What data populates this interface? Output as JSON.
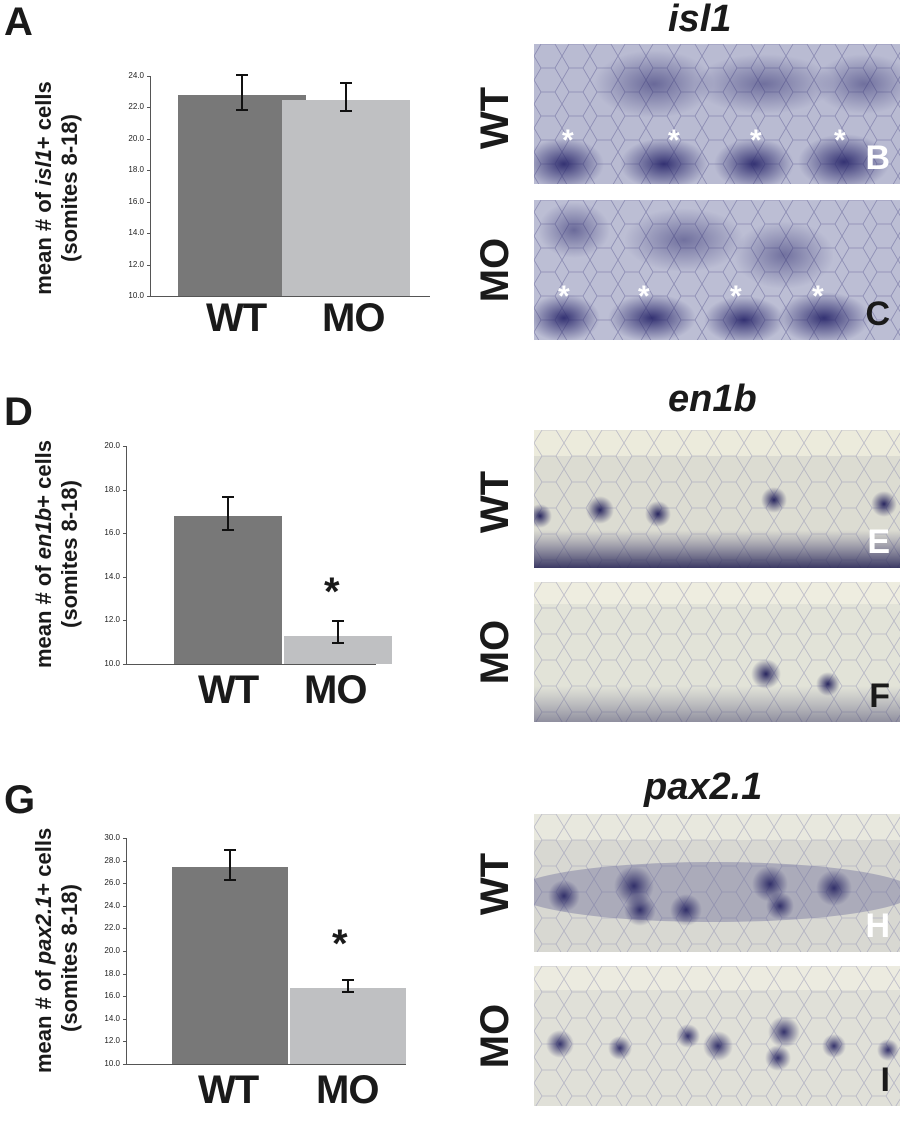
{
  "panels": {
    "A": "A",
    "B": "B",
    "C": "C",
    "D": "D",
    "E": "E",
    "F": "F",
    "G": "G",
    "H": "H",
    "I": "I"
  },
  "genes": {
    "isl1": "isl1",
    "en1b": "en1b",
    "pax2": "pax2.1"
  },
  "row_labels": {
    "wt": "WT",
    "mo": "MO"
  },
  "significance_marker": "*",
  "colors": {
    "wt_bar": "#787878",
    "mo_bar": "#bfc0c2",
    "stain": "#3b3a78"
  },
  "ylabels": {
    "isl1": {
      "pre": "mean # of ",
      "gene": "isl1",
      "post": "+ cells",
      "line2": "(somites 8-18)"
    },
    "en1b": {
      "pre": "mean # of ",
      "gene": "en1b",
      "post": "+ cells",
      "line2": "(somites 8-18)"
    },
    "pax2": {
      "pre": "mean # of ",
      "gene": "pax2.1",
      "post": "+ cells",
      "line2": "(somites 8-18)"
    }
  },
  "chart_data": [
    {
      "type": "bar",
      "categories": [
        "WT",
        "MO"
      ],
      "values": [
        22.8,
        22.5
      ],
      "error": [
        [
          21.8,
          24.1
        ],
        [
          21.7,
          23.6
        ]
      ],
      "ylim": [
        10.0,
        24.0
      ],
      "ticks": [
        "10.0",
        "12.0",
        "14.0",
        "16.0",
        "18.0",
        "20.0",
        "22.0",
        "24.0"
      ],
      "significant": [
        false,
        false
      ]
    },
    {
      "type": "bar",
      "categories": [
        "WT",
        "MO"
      ],
      "values": [
        16.8,
        11.3
      ],
      "error": [
        [
          16.1,
          17.7
        ],
        [
          10.9,
          12.0
        ]
      ],
      "ylim": [
        10.0,
        20.0
      ],
      "ticks": [
        "10.0",
        "12.0",
        "14.0",
        "16.0",
        "18.0",
        "20.0"
      ],
      "significant": [
        false,
        true
      ]
    },
    {
      "type": "bar",
      "categories": [
        "WT",
        "MO"
      ],
      "values": [
        27.4,
        16.7
      ],
      "error": [
        [
          26.2,
          29.0
        ],
        [
          16.3,
          17.5
        ]
      ],
      "ylim": [
        10.0,
        30.0
      ],
      "ticks": [
        "10.0",
        "12.0",
        "14.0",
        "16.0",
        "18.0",
        "20.0",
        "22.0",
        "24.0",
        "26.0",
        "28.0",
        "30.0"
      ],
      "significant": [
        false,
        true
      ]
    }
  ]
}
